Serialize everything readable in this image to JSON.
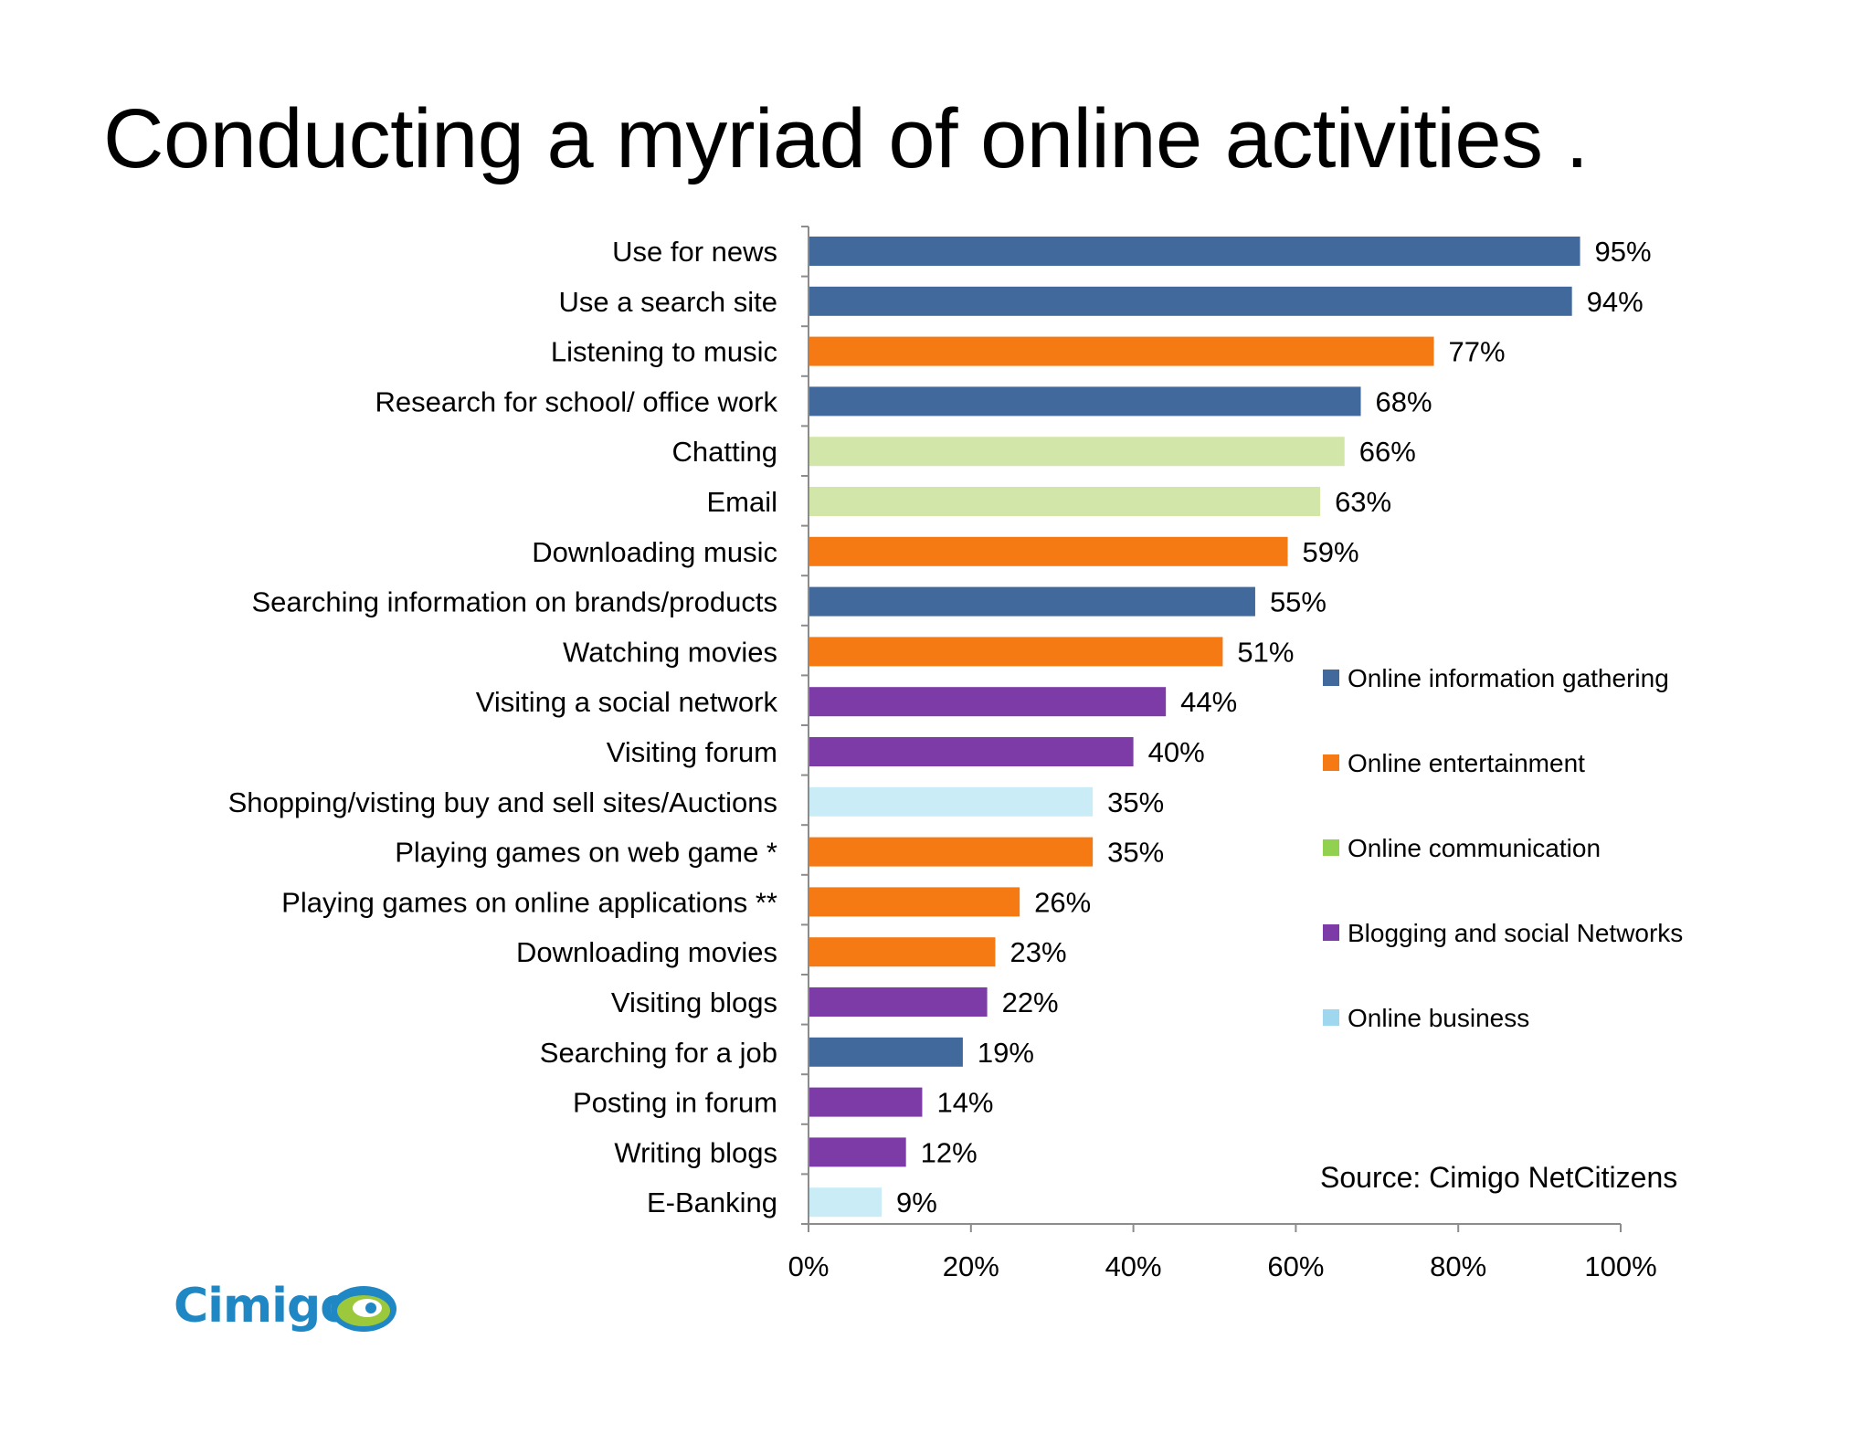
{
  "title": "Conducting a myriad of online activities .",
  "source": "Source: Cimigo NetCitizens",
  "logo": {
    "text": "Cimigo",
    "icon": "eye-logo-icon"
  },
  "colors": {
    "Online information gathering": "#41699c",
    "Online entertainment": "#f57a14",
    "Online communication": "#92d050",
    "Online communication_bar": "#d3e6a9",
    "Blogging and social Networks": "#7d3ba8",
    "Online business": "#9fd8ee",
    "Online business_bar": "#c9ecf7"
  },
  "chart_data": {
    "type": "bar",
    "orientation": "horizontal",
    "title": "",
    "xlabel": "",
    "ylabel": "",
    "xlim": [
      0,
      100
    ],
    "ticks": [
      "0%",
      "20%",
      "40%",
      "60%",
      "80%",
      "100%"
    ],
    "grid": false,
    "legend_position": "right",
    "legend": [
      "Online information gathering",
      "Online entertainment",
      "Online communication",
      "Blogging and social Networks",
      "Online business"
    ],
    "categories": [
      "Use for news",
      "Use a search site",
      "Listening to music",
      "Research for school/ office work",
      "Chatting",
      "Email",
      "Downloading music",
      "Searching information on brands/products",
      "Watching movies",
      "Visiting a social network",
      "Visiting forum",
      "Shopping/visting buy and sell sites/Auctions",
      "Playing games on web game *",
      "Playing games on online applications **",
      "Downloading movies",
      "Visiting blogs",
      "Searching for a job",
      "Posting in forum",
      "Writing blogs",
      "E-Banking"
    ],
    "values": [
      95,
      94,
      77,
      68,
      66,
      63,
      59,
      55,
      51,
      44,
      40,
      35,
      35,
      26,
      23,
      22,
      19,
      14,
      12,
      9
    ],
    "labels": [
      "95%",
      "94%",
      "77%",
      "68%",
      "66%",
      "63%",
      "59%",
      "55%",
      "51%",
      "44%",
      "40%",
      "35%",
      "35%",
      "26%",
      "23%",
      "22%",
      "19%",
      "14%",
      "12%",
      "9%"
    ],
    "groups": [
      "Online information gathering",
      "Online information gathering",
      "Online entertainment",
      "Online information gathering",
      "Online communication",
      "Online communication",
      "Online entertainment",
      "Online information gathering",
      "Online entertainment",
      "Blogging and social Networks",
      "Blogging and social Networks",
      "Online business",
      "Online entertainment",
      "Online entertainment",
      "Online entertainment",
      "Blogging and social Networks",
      "Online information gathering",
      "Blogging and social Networks",
      "Blogging and social Networks",
      "Online business"
    ]
  }
}
